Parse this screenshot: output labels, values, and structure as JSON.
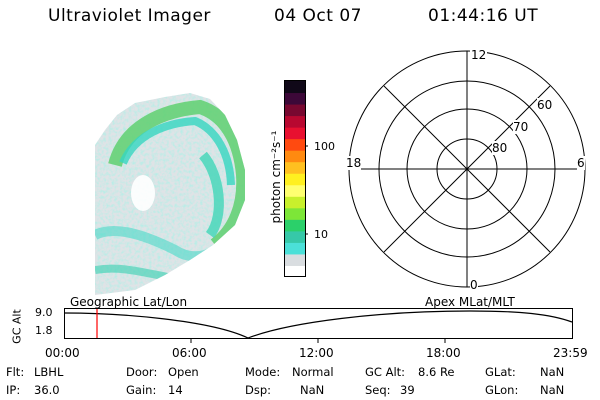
{
  "header": {
    "instrument": "Ultraviolet Imager",
    "date": "04 Oct 07",
    "time": "01:44:16 UT"
  },
  "colorbar": {
    "label": "photon cm⁻²s⁻¹",
    "ticks": [
      "100",
      "10"
    ],
    "scale": "log",
    "colors": [
      "#ffffff",
      "#d9dde0",
      "#4be0d8",
      "#36c8a8",
      "#2bd06a",
      "#7de638",
      "#c8f02c",
      "#ffff70",
      "#fff020",
      "#ffc020",
      "#ff8a10",
      "#ff4a10",
      "#e81030",
      "#b80830",
      "#780830",
      "#3c0838",
      "#100818"
    ]
  },
  "polar_grid": {
    "mlt_labels": {
      "top": "12",
      "left": "18",
      "right": "6",
      "bottom": "0"
    },
    "lat_labels": [
      "60",
      "70",
      "80"
    ]
  },
  "timeline": {
    "y_axis_label": "GC Alt",
    "y_ticks": [
      "9.0",
      "1.8"
    ],
    "left_label": "Geographic Lat/Lon",
    "right_label": "Apex MLat/MLT",
    "x_ticks": [
      "00:00",
      "06:00",
      "12:00",
      "18:00",
      "23:59"
    ],
    "current_time_marker": "01:44:16"
  },
  "info": {
    "filter_label": "Flt:",
    "filter_value": "LBHL",
    "ip_label": "IP:",
    "ip_value": "36.0",
    "door_label": "Door:",
    "door_value": "Open",
    "gain_label": "Gain:",
    "gain_value": "14",
    "mode_label": "Mode:",
    "mode_value": "Normal",
    "dsp_label": "Dsp:",
    "dsp_value": "NaN",
    "gcalt_label": "GC Alt:",
    "gcalt_value": "8.6 Re",
    "seq_label": "Seq:",
    "seq_value": "39",
    "glat_label": "GLat:",
    "glat_value": "NaN",
    "glon_label": "GLon:",
    "glon_value": "NaN"
  }
}
